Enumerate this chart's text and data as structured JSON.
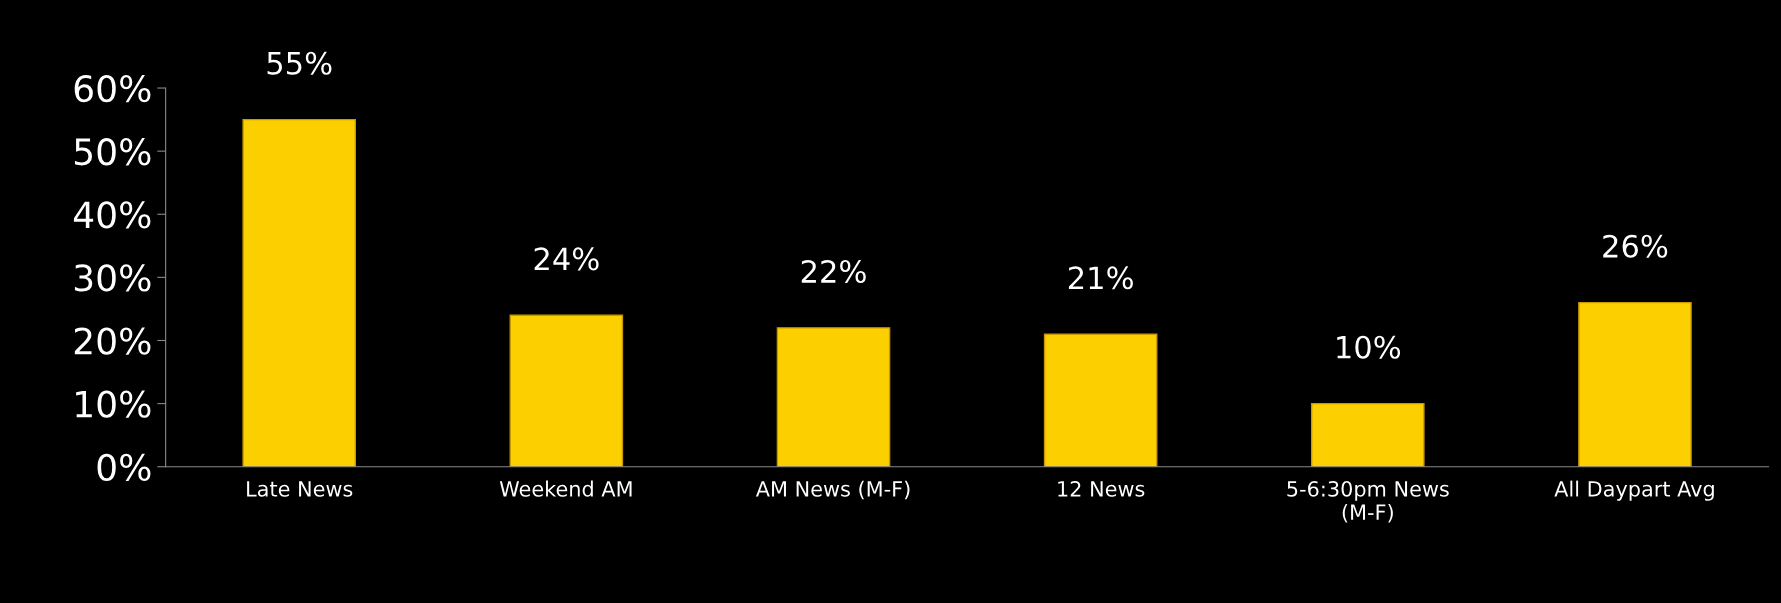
{
  "chart_data": {
    "type": "bar",
    "categories": [
      "Late News",
      "Weekend AM",
      "AM News (M-F)",
      "12 News",
      "5-6:30pm News\n(M-F)",
      "All Daypart Avg"
    ],
    "values": [
      55,
      24,
      22,
      21,
      10,
      26
    ],
    "color": "#fcd000",
    "ylim": [
      0,
      60
    ],
    "yticks": [
      {
        "value": 0,
        "label": "0%"
      },
      {
        "value": 10,
        "label": "10%"
      },
      {
        "value": 20,
        "label": "20%"
      },
      {
        "value": 30,
        "label": "30%"
      },
      {
        "value": 40,
        "label": "40%"
      },
      {
        "value": 50,
        "label": "50%"
      },
      {
        "value": 60,
        "label": "60%"
      }
    ],
    "value_labels": [
      "55%",
      "24%",
      "22%",
      "21%",
      "10%",
      "26%"
    ],
    "grid": false,
    "legend": false
  }
}
